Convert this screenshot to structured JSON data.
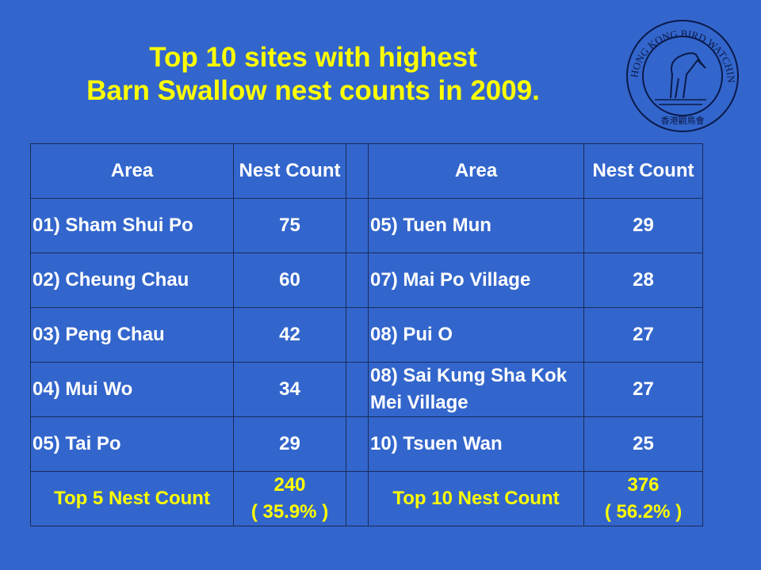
{
  "title": {
    "line1": "Top 10 sites with highest",
    "line2": "Barn Swallow nest counts in 2009."
  },
  "logo": {
    "text": "HONG KONG BIRD WATCHING SOCIETY",
    "chinese": "香港觀鳥會"
  },
  "table": {
    "headers": {
      "area": "Area",
      "count": "Nest Count"
    },
    "rows": [
      {
        "l_area": "01) Sham Shui Po",
        "l_count": "75",
        "r_area": "05) Tuen Mun",
        "r_count": "29"
      },
      {
        "l_area": "02) Cheung Chau",
        "l_count": "60",
        "r_area": "07) Mai Po Village",
        "r_count": "28"
      },
      {
        "l_area": "03) Peng Chau",
        "l_count": "42",
        "r_area": "08) Pui O",
        "r_count": "27"
      },
      {
        "l_area": "04) Mui Wo",
        "l_count": "34",
        "r_area": "08) Sai Kung Sha Kok Mei Village",
        "r_count": "27"
      },
      {
        "l_area": "05) Tai Po",
        "l_count": "29",
        "r_area": "10) Tsuen Wan",
        "r_count": "25"
      }
    ],
    "totals": {
      "l_label": "Top 5 Nest Count",
      "l_value": "240",
      "l_pct": "( 35.9% )",
      "r_label": "Top 10 Nest Count",
      "r_value": "376",
      "r_pct": "( 56.2% )"
    }
  },
  "colors": {
    "background": "#3366cc",
    "title": "#ffff00",
    "text": "#ffffff"
  }
}
